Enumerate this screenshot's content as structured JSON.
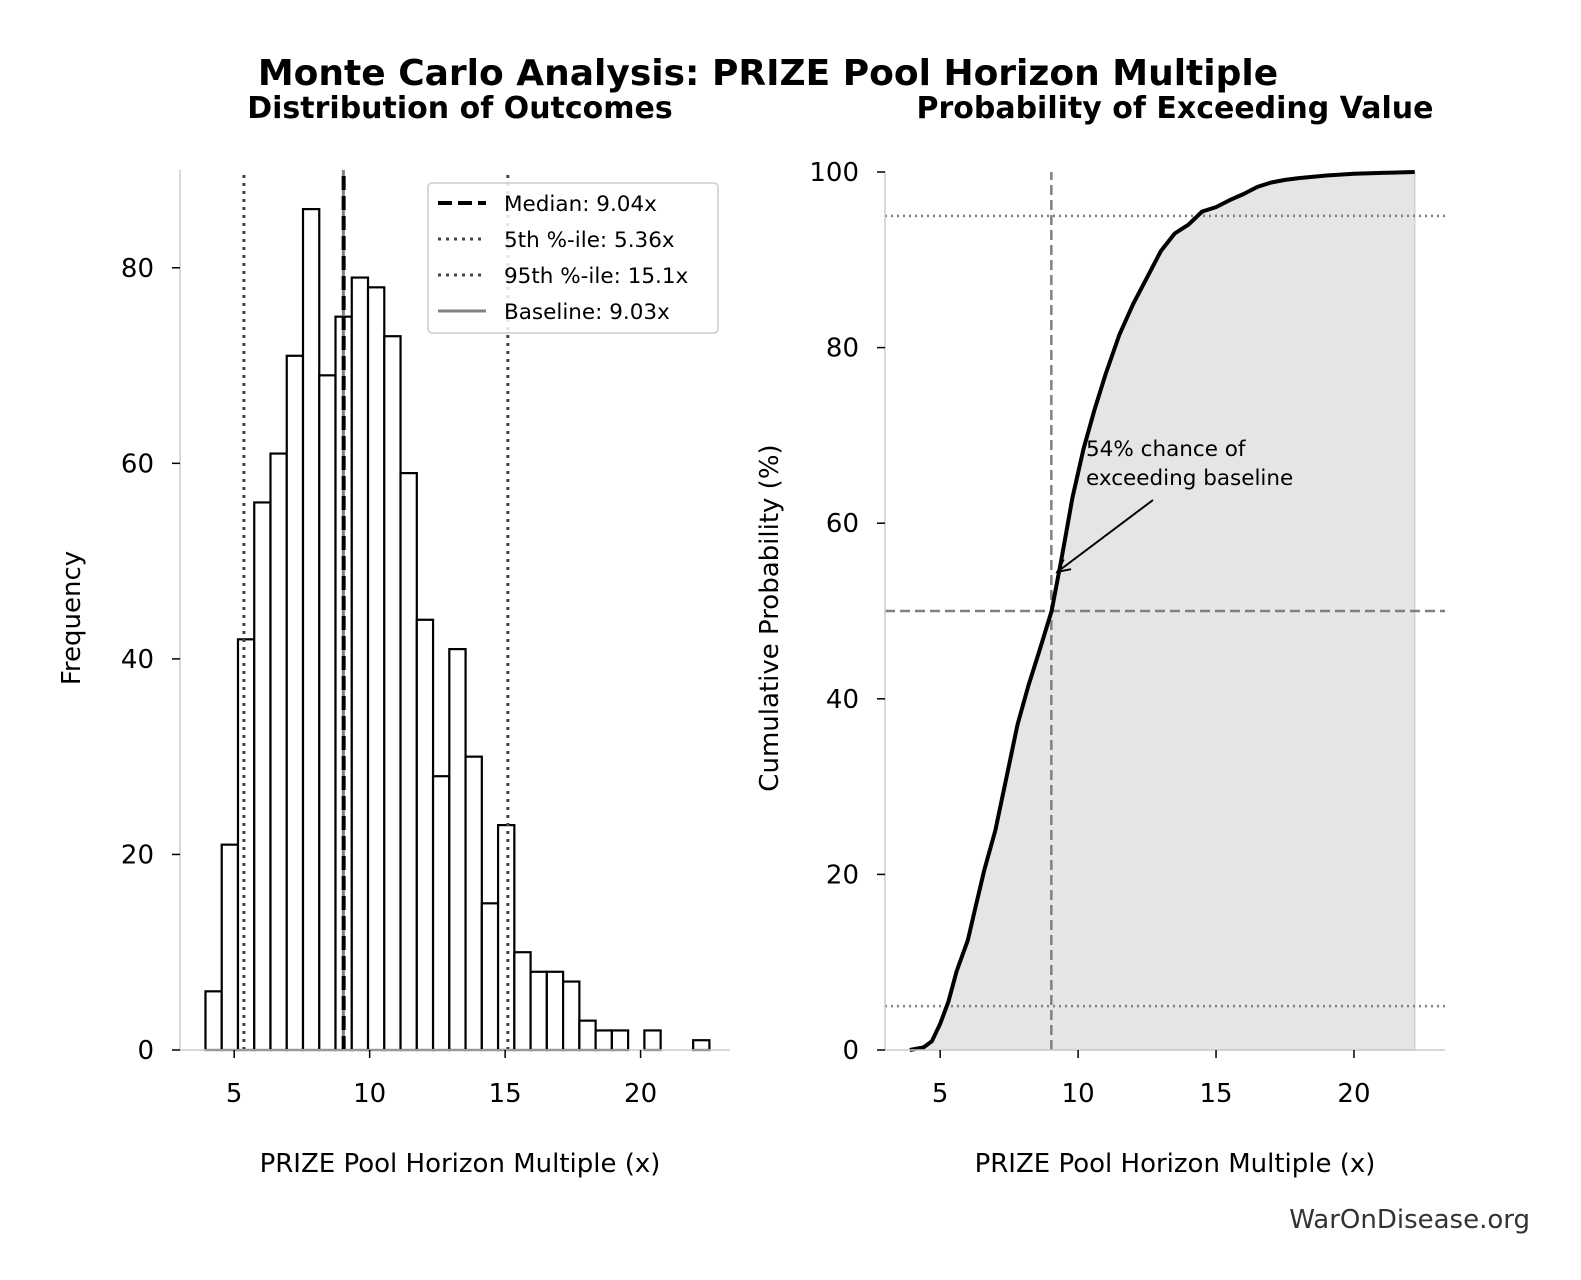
{
  "title": "Monte Carlo Analysis: PRIZE Pool Horizon Multiple",
  "credit": "WarOnDisease.org",
  "chart_data": [
    {
      "type": "bar",
      "subtype": "histogram",
      "title": "Distribution of Outcomes",
      "xlabel": "PRIZE Pool Horizon Multiple (x)",
      "ylabel": "Frequency",
      "xlim": [
        3.0,
        23.3
      ],
      "ylim": [
        0,
        90
      ],
      "xticks": [
        5,
        10,
        15,
        20
      ],
      "yticks": [
        0,
        20,
        40,
        60,
        80
      ],
      "bin_start": 3.94,
      "bin_width": 0.6,
      "values": [
        6,
        21,
        42,
        56,
        61,
        71,
        86,
        69,
        75,
        79,
        78,
        73,
        59,
        44,
        28,
        41,
        30,
        15,
        23,
        10,
        8,
        8,
        7,
        3,
        2,
        2,
        0,
        2,
        0,
        0,
        1
      ],
      "bar_fill": "#ffffff",
      "bar_edge": "#000000",
      "grid": false,
      "legend_position": "upper-right",
      "lines": [
        {
          "label": "Median: 9.04x",
          "x": 9.04,
          "style": "dashed",
          "color": "#000000"
        },
        {
          "label": "5th %-ile: 5.36x",
          "x": 5.36,
          "style": "dotted",
          "color": "#444444"
        },
        {
          "label": "95th %-ile: 15.1x",
          "x": 15.1,
          "style": "dotted",
          "color": "#444444"
        },
        {
          "label": "Baseline: 9.03x",
          "x": 9.03,
          "style": "solid",
          "color": "#808080"
        }
      ]
    },
    {
      "type": "line",
      "subtype": "cumulative",
      "title": "Probability of Exceeding Value",
      "xlabel": "PRIZE Pool Horizon Multiple (x)",
      "ylabel": "Cumulative Probability (%)",
      "xlim": [
        3.0,
        23.3
      ],
      "ylim": [
        0,
        100
      ],
      "xticks": [
        5,
        10,
        15,
        20
      ],
      "yticks": [
        0,
        20,
        40,
        60,
        80,
        100
      ],
      "fill_color": "#e5e5e5",
      "line_color": "#000000",
      "grid": false,
      "x": [
        3.9,
        4.4,
        4.7,
        5.0,
        5.3,
        5.6,
        6.0,
        6.3,
        6.6,
        7.0,
        7.4,
        7.8,
        8.2,
        8.6,
        9.04,
        9.4,
        9.8,
        10.2,
        10.6,
        11.0,
        11.5,
        12.0,
        12.5,
        13.0,
        13.5,
        14.0,
        14.5,
        15.0,
        15.5,
        16.0,
        16.5,
        17.0,
        17.5,
        18.0,
        19.0,
        20.0,
        21.0,
        22.2
      ],
      "y": [
        0,
        0.3,
        1.0,
        3.0,
        5.5,
        9.0,
        12.5,
        16.5,
        20.5,
        25.0,
        31.0,
        37.0,
        41.5,
        45.5,
        50.0,
        56.0,
        63.0,
        68.5,
        73.0,
        77.0,
        81.5,
        85.0,
        88.0,
        91.0,
        93.0,
        94.0,
        95.5,
        96.0,
        96.8,
        97.5,
        98.3,
        98.8,
        99.1,
        99.3,
        99.6,
        99.8,
        99.9,
        100
      ],
      "hlines": [
        {
          "y": 95,
          "style": "dotted",
          "color": "#808080"
        },
        {
          "y": 50,
          "style": "dashed",
          "color": "#808080"
        },
        {
          "y": 5,
          "style": "dotted",
          "color": "#808080"
        }
      ],
      "vlines": [
        {
          "x": 9.03,
          "style": "dashed",
          "color": "#808080"
        }
      ],
      "annotation": {
        "text_lines": [
          "54% chance of",
          "exceeding baseline"
        ],
        "target": [
          9.03,
          54
        ]
      }
    }
  ]
}
